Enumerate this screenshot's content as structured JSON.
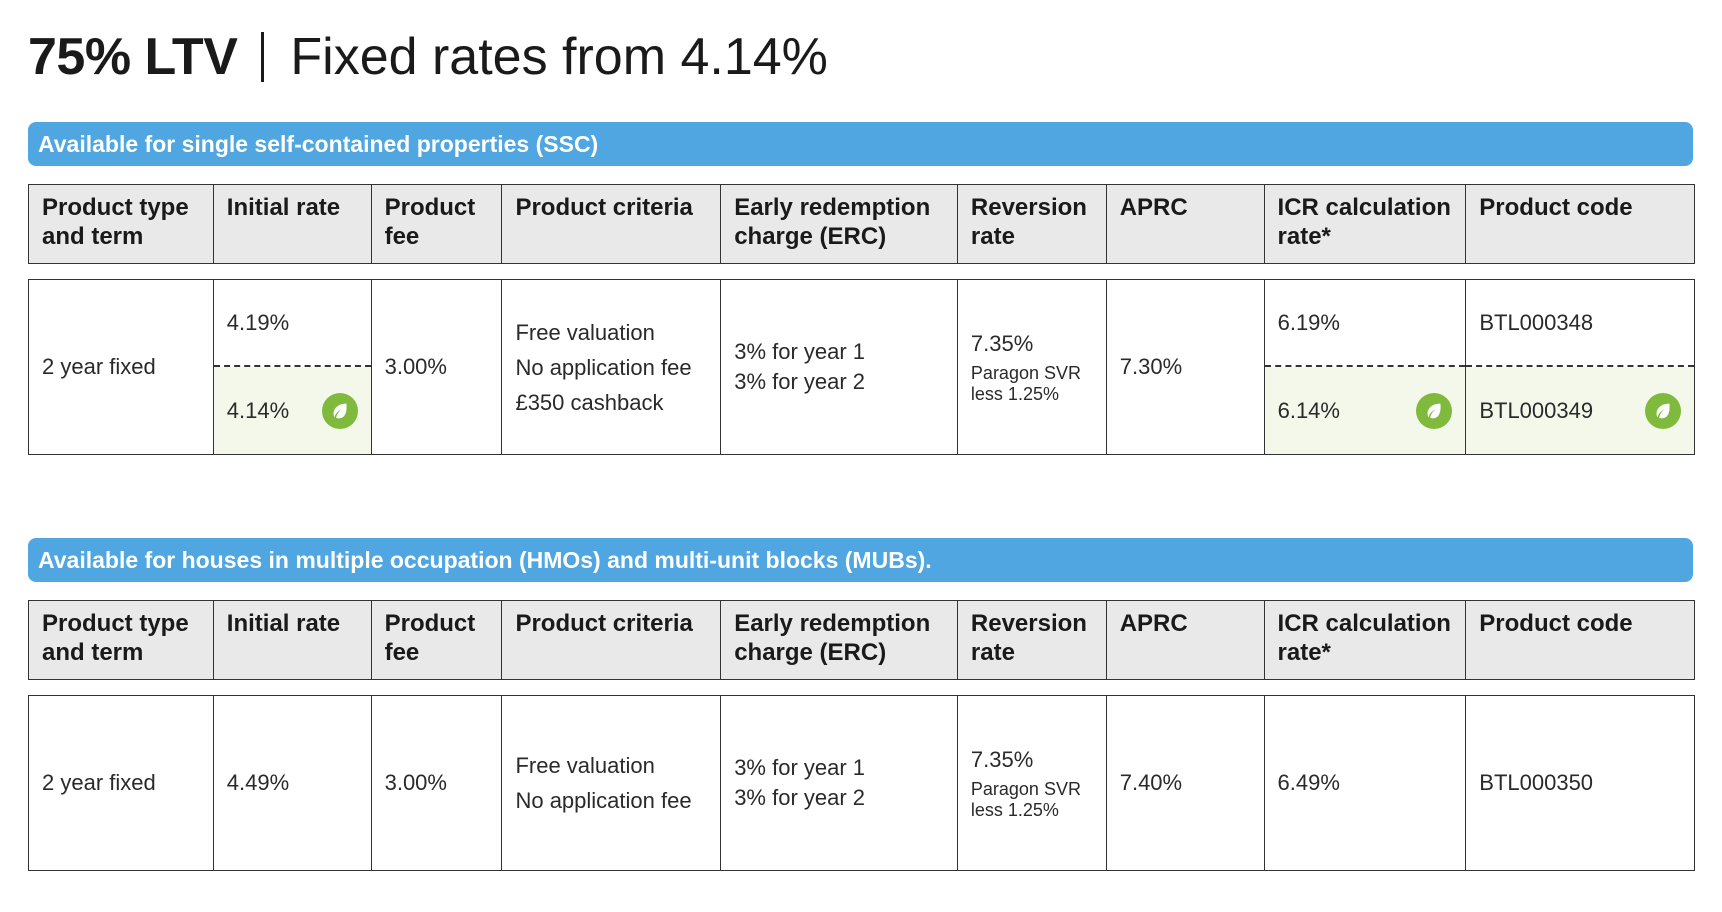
{
  "title": {
    "ltv": "75% LTV",
    "rates": "Fixed rates from 4.14%"
  },
  "headers": [
    "Product type and term",
    "Initial rate",
    "Product fee",
    "Product criteria",
    "Early redemption charge (ERC)",
    "Reversion rate",
    "APRC",
    "ICR calculation rate*",
    "Product code"
  ],
  "colors": {
    "banner": "#4fa6e0",
    "header_bg": "#e9e9e9",
    "green_bg": "#f3f8ea",
    "leaf": "#7fba3c"
  },
  "sections": [
    {
      "banner": "Available for single self-contained properties (SSC)",
      "row": {
        "type": "2 year fixed",
        "initial_rate": "4.19%",
        "initial_rate_green": "4.14%",
        "fee": "3.00%",
        "criteria": [
          "Free valuation",
          "No application fee",
          "£350 cashback"
        ],
        "erc": [
          "3% for year 1",
          "3% for year 2"
        ],
        "reversion": "7.35%",
        "reversion_note": [
          "Paragon SVR",
          "less 1.25%"
        ],
        "aprc": "7.30%",
        "icr": "6.19%",
        "icr_green": "6.14%",
        "code": "BTL000348",
        "code_green": "BTL000349",
        "green_icon": "leaf-icon"
      }
    },
    {
      "banner": "Available for houses in multiple occupation (HMOs) and multi-unit blocks (MUBs).",
      "row": {
        "type": "2 year fixed",
        "initial_rate": "4.49%",
        "fee": "3.00%",
        "criteria": [
          "Free valuation",
          "No application fee"
        ],
        "erc": [
          "3% for year 1",
          "3% for year 2"
        ],
        "reversion": "7.35%",
        "reversion_note": [
          "Paragon SVR",
          "less 1.25%"
        ],
        "aprc": "7.40%",
        "icr": "6.49%",
        "code": "BTL000350"
      }
    }
  ]
}
